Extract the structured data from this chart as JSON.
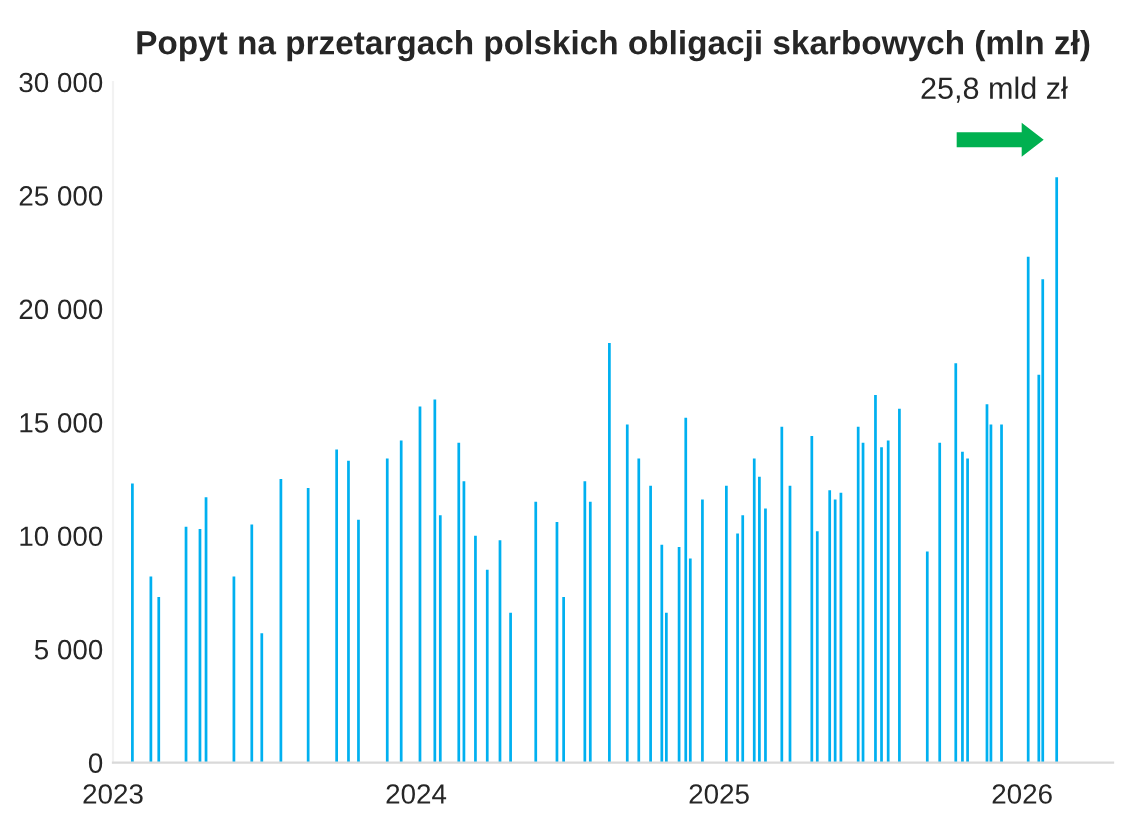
{
  "chart_data": {
    "type": "bar",
    "title": "Popyt na przetargach polskich obligacji skarbowych (mln zł)",
    "x": [
      2023.064,
      2023.125,
      2023.151,
      2023.241,
      2023.287,
      2023.307,
      2023.399,
      2023.458,
      2023.491,
      2023.554,
      2023.644,
      2023.738,
      2023.777,
      2023.81,
      2023.905,
      2023.951,
      2024.013,
      2024.062,
      2024.08,
      2024.141,
      2024.158,
      2024.196,
      2024.235,
      2024.277,
      2024.312,
      2024.395,
      2024.465,
      2024.487,
      2024.557,
      2024.575,
      2024.638,
      2024.697,
      2024.735,
      2024.774,
      2024.811,
      2024.826,
      2024.868,
      2024.89,
      2024.905,
      2024.945,
      2025.024,
      2025.061,
      2025.078,
      2025.116,
      2025.133,
      2025.153,
      2025.207,
      2025.234,
      2025.306,
      2025.324,
      2025.365,
      2025.383,
      2025.402,
      2025.459,
      2025.475,
      2025.516,
      2025.536,
      2025.558,
      2025.595,
      2025.687,
      2025.728,
      2025.781,
      2025.803,
      2025.82,
      2025.884,
      2025.897,
      2025.932,
      2026.02,
      2026.055,
      2026.068,
      2026.114
    ],
    "values": [
      12300,
      8200,
      7300,
      10400,
      10300,
      11700,
      8200,
      10500,
      5700,
      12500,
      12100,
      13800,
      13300,
      10700,
      13400,
      14200,
      15700,
      16000,
      10900,
      14100,
      12400,
      10000,
      8500,
      9800,
      6600,
      11500,
      10600,
      7300,
      12400,
      11500,
      18500,
      14900,
      13400,
      12200,
      9600,
      6600,
      9500,
      15200,
      9000,
      11600,
      12200,
      10100,
      10900,
      13400,
      12600,
      11200,
      14800,
      12200,
      14400,
      10200,
      12000,
      11600,
      11900,
      14800,
      14100,
      16200,
      13900,
      14200,
      15600,
      9300,
      14100,
      17600,
      13700,
      13400,
      15800,
      14900,
      14900,
      22300,
      17100,
      21300,
      25800
    ],
    "color": "#00b0f0",
    "xlim": [
      2023,
      2026.3
    ],
    "xticks": [
      2023,
      2024,
      2025,
      2026
    ],
    "ylim": [
      0,
      30000
    ],
    "yticks": [
      0,
      {
        "value": 5000,
        "label": "5 000"
      },
      {
        "value": 10000,
        "label": "10 000"
      },
      {
        "value": 15000,
        "label": "15 000"
      },
      {
        "value": 20000,
        "label": "20 000"
      },
      {
        "value": 25000,
        "label": "25 000"
      },
      {
        "value": 30000,
        "label": "30 000"
      }
    ],
    "annotations": [
      {
        "text": "25,8 mld zł",
        "x": 2026.114,
        "y": 25800
      }
    ],
    "grid": false
  }
}
